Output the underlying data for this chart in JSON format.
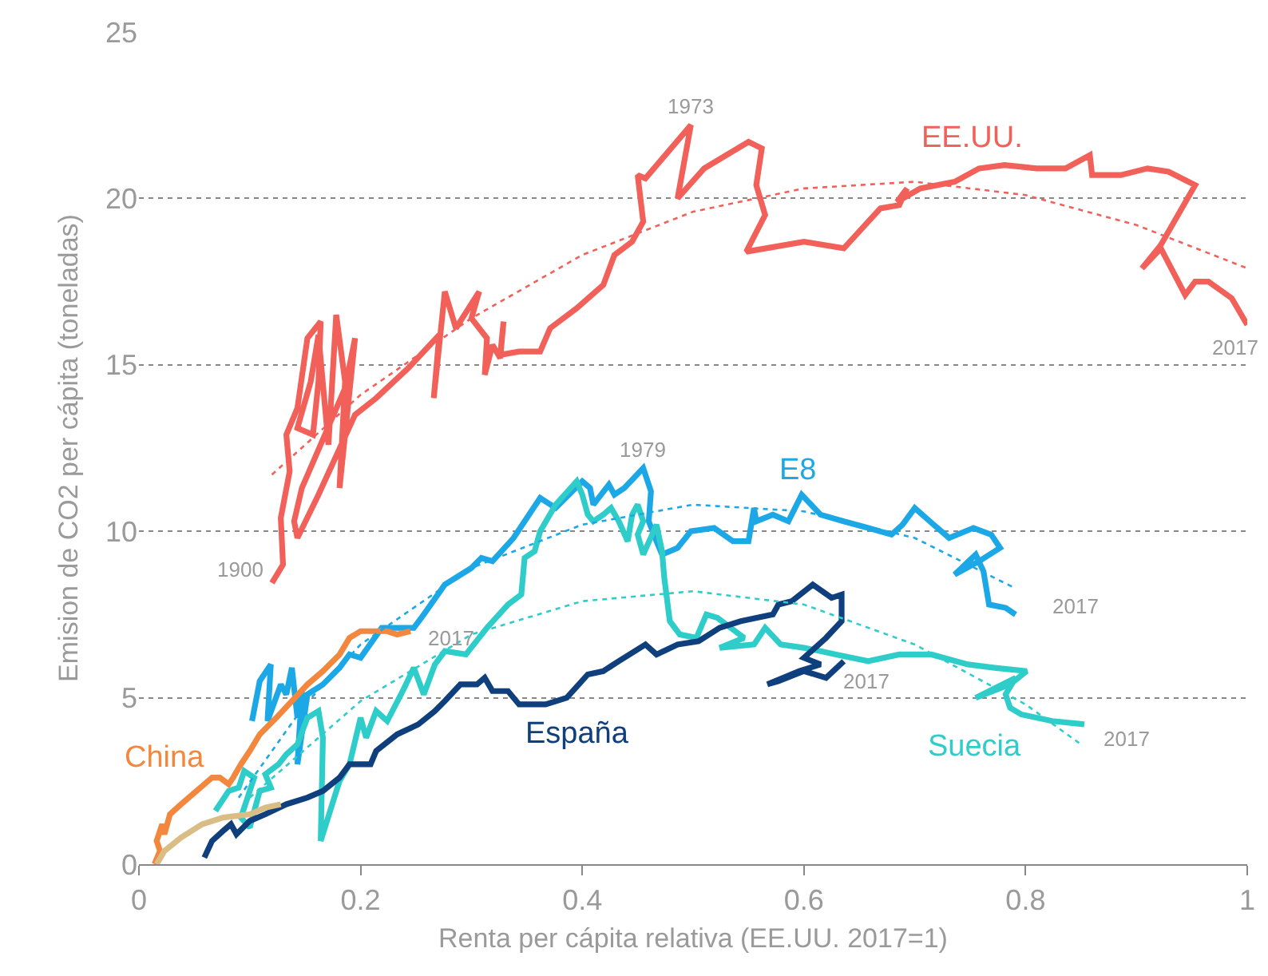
{
  "chart_data": {
    "type": "line",
    "xlabel": "Renta per cápita relativa (EE.UU. 2017=1)",
    "ylabel": "Emision de CO2 per cápita (toneladas)",
    "xlim": [
      0,
      1
    ],
    "xticks": [
      0,
      0.2,
      0.4,
      0.6,
      0.8,
      1
    ],
    "ylim": [
      0,
      25
    ],
    "yticks": [
      0,
      5,
      10,
      15,
      20,
      25
    ],
    "grid": "y",
    "legend": false,
    "marker": "none",
    "series": [
      {
        "name": "EE.UU.",
        "color": "#f2605a",
        "line_style": "solid",
        "x": [
          0.12,
          0.13,
          0.128,
          0.136,
          0.133,
          0.143,
          0.152,
          0.164,
          0.162,
          0.157,
          0.143,
          0.155,
          0.162,
          0.171,
          0.178,
          0.186,
          0.181,
          0.195,
          0.186,
          0.147,
          0.14,
          0.143,
          0.162,
          0.195,
          0.214,
          0.243,
          0.271,
          0.266,
          0.276,
          0.286,
          0.307,
          0.3,
          0.314,
          0.312,
          0.319,
          0.326,
          0.329,
          0.326,
          0.343,
          0.362,
          0.371,
          0.395,
          0.419,
          0.429,
          0.445,
          0.455,
          0.45,
          0.457,
          0.498,
          0.486,
          0.51,
          0.55,
          0.562,
          0.557,
          0.565,
          0.548,
          0.6,
          0.636,
          0.669,
          0.686,
          0.693,
          0.684,
          0.705,
          0.736,
          0.758,
          0.781,
          0.81,
          0.836,
          0.858,
          0.86,
          0.886,
          0.91,
          0.929,
          0.953,
          0.922,
          0.905,
          0.922,
          0.944,
          0.953,
          0.965,
          0.986,
          1.0
        ],
        "values": [
          8.45,
          9.0,
          10.4,
          11.8,
          12.9,
          13.7,
          15.8,
          16.3,
          14.5,
          12.9,
          13.1,
          14.5,
          15.9,
          12.6,
          16.5,
          14.5,
          11.3,
          15.8,
          14.3,
          11.3,
          10.3,
          9.8,
          11.1,
          13.5,
          14.0,
          14.9,
          15.9,
          14.0,
          17.2,
          16.1,
          17.2,
          16.4,
          15.8,
          14.7,
          15.6,
          15.2,
          16.3,
          15.3,
          15.4,
          15.4,
          16.1,
          16.7,
          17.4,
          18.3,
          18.7,
          19.3,
          20.7,
          20.6,
          22.2,
          20.0,
          20.9,
          21.7,
          21.5,
          20.4,
          19.5,
          18.4,
          18.7,
          18.5,
          19.7,
          19.8,
          20.3,
          19.9,
          20.3,
          20.5,
          20.9,
          21.0,
          20.9,
          20.9,
          21.3,
          20.7,
          20.7,
          20.9,
          20.8,
          20.4,
          18.6,
          17.9,
          18.5,
          17.1,
          17.5,
          17.5,
          17.0,
          16.2
        ]
      },
      {
        "name": "E8",
        "color": "#1ca8e6",
        "line_style": "solid",
        "x": [
          0.102,
          0.109,
          0.119,
          0.116,
          0.128,
          0.133,
          0.138,
          0.143,
          0.147,
          0.143,
          0.152,
          0.166,
          0.181,
          0.19,
          0.2,
          0.219,
          0.248,
          0.257,
          0.276,
          0.3,
          0.309,
          0.319,
          0.338,
          0.362,
          0.376,
          0.4,
          0.407,
          0.41,
          0.424,
          0.429,
          0.438,
          0.455,
          0.462,
          0.46,
          0.467,
          0.472,
          0.486,
          0.498,
          0.519,
          0.536,
          0.55,
          0.555,
          0.557,
          0.572,
          0.586,
          0.598,
          0.615,
          0.636,
          0.658,
          0.679,
          0.689,
          0.7,
          0.717,
          0.731,
          0.753,
          0.769,
          0.777,
          0.758,
          0.736,
          0.755,
          0.762,
          0.765,
          0.767,
          0.782,
          0.791
        ],
        "values": [
          4.3,
          5.5,
          6.0,
          4.3,
          5.4,
          5.1,
          5.9,
          4.4,
          5.2,
          3.0,
          5.1,
          5.4,
          5.9,
          6.3,
          6.2,
          7.1,
          7.1,
          7.5,
          8.4,
          8.9,
          9.2,
          9.1,
          9.8,
          11.0,
          10.7,
          11.5,
          11.3,
          10.8,
          11.4,
          11.1,
          11.3,
          11.9,
          11.2,
          10.3,
          9.7,
          9.3,
          9.5,
          10.0,
          10.1,
          9.7,
          9.7,
          10.7,
          10.3,
          10.5,
          10.3,
          11.1,
          10.5,
          10.3,
          10.1,
          9.9,
          10.2,
          10.7,
          10.2,
          9.8,
          10.1,
          9.9,
          9.5,
          9.1,
          8.7,
          9.3,
          8.8,
          8.2,
          7.8,
          7.7,
          7.5
        ]
      },
      {
        "name": "Suecia",
        "color": "#2ecdca",
        "line_style": "solid",
        "x": [
          0.069,
          0.081,
          0.09,
          0.095,
          0.104,
          0.092,
          0.1,
          0.109,
          0.119,
          0.114,
          0.126,
          0.133,
          0.143,
          0.152,
          0.162,
          0.166,
          0.164,
          0.181,
          0.19,
          0.2,
          0.205,
          0.214,
          0.224,
          0.238,
          0.248,
          0.257,
          0.267,
          0.276,
          0.295,
          0.314,
          0.333,
          0.345,
          0.348,
          0.357,
          0.362,
          0.376,
          0.395,
          0.4,
          0.405,
          0.41,
          0.419,
          0.426,
          0.433,
          0.441,
          0.445,
          0.45,
          0.455,
          0.45,
          0.455,
          0.467,
          0.472,
          0.474,
          0.479,
          0.488,
          0.503,
          0.512,
          0.522,
          0.534,
          0.546,
          0.524,
          0.555,
          0.565,
          0.579,
          0.6,
          0.615,
          0.629,
          0.658,
          0.686,
          0.715,
          0.748,
          0.772,
          0.801,
          0.786,
          0.755,
          0.791,
          0.782,
          0.786,
          0.796,
          0.824,
          0.853
        ],
        "values": [
          1.6,
          2.2,
          2.3,
          2.8,
          2.6,
          1.4,
          1.1,
          2.2,
          2.3,
          2.7,
          3.0,
          3.3,
          3.6,
          4.4,
          4.6,
          3.8,
          0.7,
          2.5,
          3.0,
          4.4,
          3.8,
          4.6,
          4.3,
          5.2,
          5.9,
          5.1,
          6.0,
          6.4,
          6.3,
          7.1,
          7.8,
          8.1,
          9.2,
          9.4,
          10.0,
          10.8,
          11.5,
          11.1,
          10.5,
          10.3,
          10.5,
          10.7,
          10.3,
          9.7,
          10.5,
          10.8,
          10.3,
          9.9,
          9.3,
          10.2,
          9.4,
          8.6,
          7.3,
          6.9,
          6.8,
          7.5,
          7.4,
          7.1,
          6.8,
          6.5,
          6.6,
          7.1,
          6.6,
          6.5,
          6.4,
          6.3,
          6.1,
          6.3,
          6.3,
          6.0,
          5.9,
          5.8,
          5.4,
          5.0,
          5.6,
          5.1,
          4.7,
          4.5,
          4.3,
          4.2
        ]
      },
      {
        "name": "España",
        "color": "#0f3f7c",
        "line_style": "solid",
        "x": [
          0.059,
          0.066,
          0.076,
          0.083,
          0.088,
          0.1,
          0.114,
          0.133,
          0.152,
          0.166,
          0.181,
          0.19,
          0.209,
          0.214,
          0.233,
          0.252,
          0.267,
          0.276,
          0.29,
          0.305,
          0.312,
          0.319,
          0.333,
          0.343,
          0.367,
          0.386,
          0.405,
          0.419,
          0.433,
          0.457,
          0.467,
          0.486,
          0.505,
          0.524,
          0.543,
          0.572,
          0.577,
          0.589,
          0.608,
          0.625,
          0.634,
          0.634,
          0.62,
          0.6,
          0.615,
          0.596,
          0.567,
          0.577,
          0.6,
          0.62,
          0.636
        ],
        "values": [
          0.2,
          0.7,
          1.0,
          1.2,
          0.9,
          1.3,
          1.5,
          1.8,
          2.0,
          2.2,
          2.6,
          3.0,
          3.0,
          3.4,
          3.9,
          4.2,
          4.6,
          4.9,
          5.4,
          5.4,
          5.6,
          5.2,
          5.2,
          4.8,
          4.8,
          5.0,
          5.7,
          5.8,
          6.1,
          6.6,
          6.3,
          6.6,
          6.7,
          7.1,
          7.3,
          7.5,
          7.8,
          7.9,
          8.4,
          8.0,
          8.1,
          7.3,
          6.8,
          6.2,
          6.0,
          5.8,
          5.4,
          5.5,
          5.8,
          5.6,
          6.1
        ]
      },
      {
        "name": "China",
        "color": "#f2873d",
        "line_style": "solid",
        "x": [
          0.014,
          0.019,
          0.016,
          0.021,
          0.023,
          0.028,
          0.038,
          0.052,
          0.066,
          0.073,
          0.081,
          0.085,
          0.092,
          0.1,
          0.109,
          0.124,
          0.138,
          0.152,
          0.166,
          0.181,
          0.19,
          0.2,
          0.214,
          0.224,
          0.233,
          0.245
        ],
        "values": [
          0.0,
          0.4,
          0.7,
          1.2,
          0.9,
          1.5,
          1.8,
          2.2,
          2.6,
          2.6,
          2.4,
          2.6,
          3.0,
          3.4,
          3.9,
          4.4,
          4.9,
          5.4,
          5.8,
          6.3,
          6.8,
          7.0,
          7.0,
          7.0,
          6.9,
          7.0
        ]
      },
      {
        "color": "#d9bd85",
        "line_style": "solid",
        "x": [
          0.016,
          0.023,
          0.038,
          0.057,
          0.076,
          0.1,
          0.114,
          0.128
        ],
        "values": [
          0.0,
          0.4,
          0.8,
          1.2,
          1.4,
          1.5,
          1.7,
          1.8
        ]
      },
      {
        "color": "#f2605a",
        "line_style": "dotted",
        "x": [
          0.12,
          0.2,
          0.3,
          0.4,
          0.5,
          0.6,
          0.7,
          0.8,
          0.9,
          1.0
        ],
        "values": [
          11.7,
          14.1,
          16.4,
          18.3,
          19.6,
          20.3,
          20.5,
          20.1,
          19.2,
          17.9
        ]
      },
      {
        "color": "#1ca8e6",
        "line_style": "dotted",
        "x": [
          0.09,
          0.15,
          0.2,
          0.3,
          0.4,
          0.5,
          0.6,
          0.7,
          0.79
        ],
        "values": [
          2.0,
          4.8,
          6.6,
          8.9,
          10.2,
          10.8,
          10.6,
          9.8,
          8.3
        ]
      },
      {
        "color": "#2ecdca",
        "line_style": "dotted",
        "x": [
          0.1,
          0.2,
          0.3,
          0.4,
          0.5,
          0.6,
          0.7,
          0.8,
          0.85
        ],
        "values": [
          2.0,
          4.9,
          6.9,
          7.9,
          8.2,
          7.8,
          6.6,
          4.8,
          3.6
        ]
      }
    ],
    "annotations": [
      {
        "text": "1900",
        "x": 0.12,
        "y": 8.45
      },
      {
        "text": "1973",
        "x": 0.498,
        "y": 22.2
      },
      {
        "text": "1979",
        "x": 0.455,
        "y": 11.9
      },
      {
        "text": "2017",
        "x": 1.0,
        "y": 16.2
      },
      {
        "text": "2017",
        "x": 0.245,
        "y": 7.0
      },
      {
        "text": "2017",
        "x": 0.791,
        "y": 7.5
      },
      {
        "text": "2017",
        "x": 0.636,
        "y": 6.1
      },
      {
        "text": "2017",
        "x": 0.853,
        "y": 4.2
      }
    ]
  }
}
